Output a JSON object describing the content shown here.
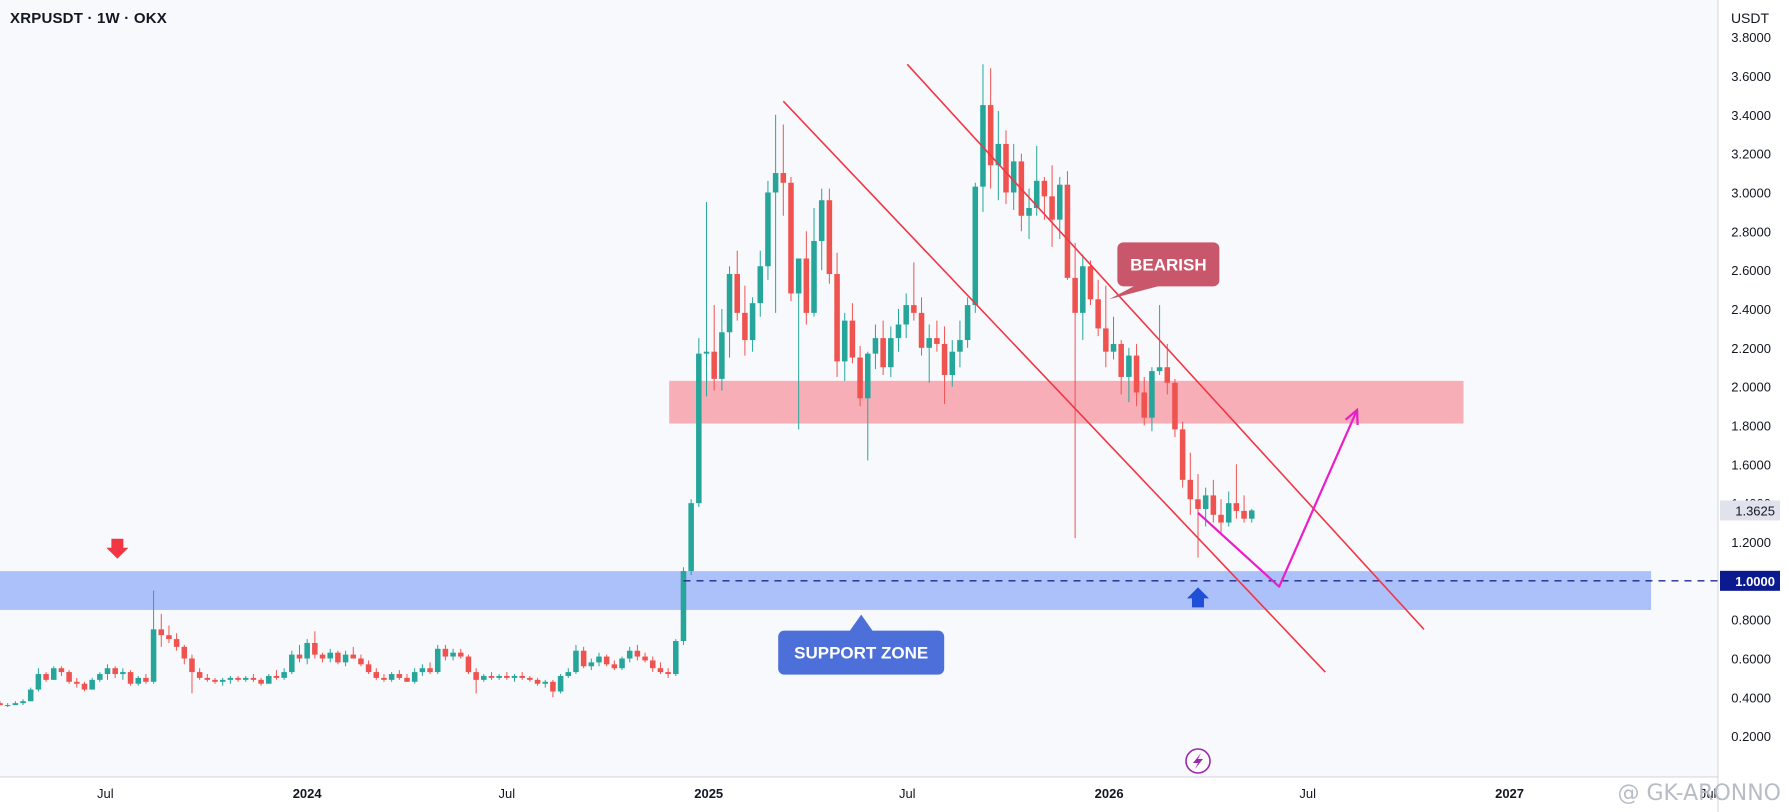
{
  "header": {
    "title": "XRPUSDT · 1W · OKX",
    "unit": "USDT"
  },
  "watermark": "@ GK-ARONNO",
  "colors": {
    "up": "#26a69a",
    "down": "#ef5350",
    "support_zone": "#a8bdfa",
    "resistance_zone": "#f7aab3",
    "channel": "#f23645",
    "projection": "#e91ec8",
    "bearish_callout": "#c9576b",
    "support_callout": "#4d6fd9",
    "level_line": "#1f2a8c"
  },
  "chart_data": {
    "type": "candlestick",
    "title": "XRPUSDT · 1W · OKX",
    "interval": "1W",
    "exchange": "OKX",
    "xlabel": "",
    "ylabel": "USDT",
    "y_ticks": [
      0.2,
      0.4,
      0.6,
      0.8,
      1.0,
      1.2,
      1.4,
      1.6,
      1.8,
      2.0,
      2.2,
      2.4,
      2.6,
      2.8,
      3.0,
      3.2,
      3.4,
      3.6,
      3.8
    ],
    "y_tick_labels": [
      "0.2000",
      "0.4000",
      "0.6000",
      "0.8000",
      "1.0000",
      "1.2000",
      "1.4000",
      "1.6000",
      "1.8000",
      "2.0000",
      "2.2000",
      "2.4000",
      "2.6000",
      "2.8000",
      "3.0000",
      "3.2000",
      "3.4000",
      "3.6000",
      "3.8000"
    ],
    "ylim": [
      0.0,
      3.95
    ],
    "x_ticks": [
      {
        "label": "Jul",
        "date": "2023-07-01"
      },
      {
        "label": "2024",
        "date": "2024-01-01"
      },
      {
        "label": "Jul",
        "date": "2024-07-01"
      },
      {
        "label": "2025",
        "date": "2025-01-01"
      },
      {
        "label": "Jul",
        "date": "2025-07-01"
      },
      {
        "label": "2026",
        "date": "2026-01-01"
      },
      {
        "label": "Jul",
        "date": "2026-07-01"
      },
      {
        "label": "2027",
        "date": "2027-01-01"
      },
      {
        "label": "Jul",
        "date": "2027-07-01"
      }
    ],
    "xlim": [
      "2023-03-27",
      "2027-07-10"
    ],
    "current_price": 1.3625,
    "current_price_label": "1.3625",
    "key_level": 1.0,
    "key_level_label": "1.0000",
    "key_level_start": "2024-12-09",
    "support_zone": {
      "from": 0.85,
      "to": 1.05,
      "start": "2023-03-27",
      "end": "2027-05-10",
      "label": "SUPPORT ZONE",
      "label_date": "2025-05-20",
      "label_price": 0.63
    },
    "resistance_zone": {
      "from": 1.81,
      "to": 2.03,
      "start": "2024-11-26",
      "end": "2026-11-20"
    },
    "bearish_callout": {
      "label": "BEARISH",
      "date": "2026-02-24",
      "price": 2.63,
      "pointer_date": "2026-01-01",
      "pointer_price": 2.45
    },
    "channel_lines": [
      {
        "from": [
          "2025-03-10",
          3.47
        ],
        "to": [
          "2026-07-17",
          0.53
        ]
      },
      {
        "from": [
          "2025-07-01",
          3.66
        ],
        "to": [
          "2026-10-15",
          0.75
        ]
      }
    ],
    "projection_path": [
      [
        "2026-03-23",
        1.35
      ],
      [
        "2026-06-05",
        0.97
      ],
      [
        "2026-08-15",
        1.88
      ]
    ],
    "markers": [
      {
        "kind": "arrow-down",
        "date": "2023-07-12",
        "price": 1.15
      },
      {
        "kind": "arrow-up",
        "date": "2026-03-23",
        "price": 0.93
      }
    ],
    "candles": [
      [
        "2023-03-27",
        0.37,
        0.38,
        0.36,
        0.36
      ],
      [
        "2023-04-03",
        0.36,
        0.37,
        0.35,
        0.36
      ],
      [
        "2023-04-10",
        0.36,
        0.38,
        0.36,
        0.37
      ],
      [
        "2023-04-17",
        0.37,
        0.39,
        0.36,
        0.38
      ],
      [
        "2023-04-24",
        0.38,
        0.45,
        0.38,
        0.44
      ],
      [
        "2023-05-01",
        0.44,
        0.55,
        0.43,
        0.52
      ],
      [
        "2023-05-08",
        0.52,
        0.53,
        0.48,
        0.49
      ],
      [
        "2023-05-15",
        0.49,
        0.56,
        0.49,
        0.55
      ],
      [
        "2023-05-22",
        0.55,
        0.56,
        0.51,
        0.53
      ],
      [
        "2023-05-29",
        0.53,
        0.54,
        0.47,
        0.48
      ],
      [
        "2023-06-05",
        0.48,
        0.5,
        0.45,
        0.47
      ],
      [
        "2023-06-12",
        0.47,
        0.48,
        0.43,
        0.44
      ],
      [
        "2023-06-19",
        0.44,
        0.5,
        0.44,
        0.49
      ],
      [
        "2023-06-26",
        0.49,
        0.53,
        0.48,
        0.52
      ],
      [
        "2023-07-03",
        0.52,
        0.57,
        0.49,
        0.55
      ],
      [
        "2023-07-10",
        0.55,
        0.56,
        0.5,
        0.52
      ],
      [
        "2023-07-17",
        0.52,
        0.55,
        0.49,
        0.53
      ],
      [
        "2023-07-24",
        0.53,
        0.54,
        0.46,
        0.47
      ],
      [
        "2023-07-31",
        0.47,
        0.51,
        0.46,
        0.5
      ],
      [
        "2023-08-07",
        0.5,
        0.52,
        0.47,
        0.48
      ],
      [
        "2023-08-14",
        0.48,
        0.95,
        0.47,
        0.75
      ],
      [
        "2023-08-21",
        0.75,
        0.83,
        0.66,
        0.72
      ],
      [
        "2023-08-28",
        0.72,
        0.77,
        0.68,
        0.7
      ],
      [
        "2023-09-04",
        0.7,
        0.73,
        0.64,
        0.66
      ],
      [
        "2023-09-11",
        0.66,
        0.67,
        0.57,
        0.6
      ],
      [
        "2023-09-18",
        0.6,
        0.62,
        0.42,
        0.53
      ],
      [
        "2023-09-25",
        0.53,
        0.55,
        0.49,
        0.5
      ],
      [
        "2023-10-02",
        0.5,
        0.52,
        0.48,
        0.49
      ],
      [
        "2023-10-09",
        0.49,
        0.5,
        0.47,
        0.48
      ],
      [
        "2023-10-16",
        0.48,
        0.5,
        0.46,
        0.49
      ],
      [
        "2023-10-23",
        0.49,
        0.51,
        0.47,
        0.5
      ],
      [
        "2023-10-30",
        0.5,
        0.51,
        0.48,
        0.49
      ],
      [
        "2023-11-06",
        0.49,
        0.51,
        0.48,
        0.5
      ],
      [
        "2023-11-13",
        0.5,
        0.52,
        0.48,
        0.49
      ],
      [
        "2023-11-20",
        0.49,
        0.5,
        0.46,
        0.47
      ],
      [
        "2023-11-27",
        0.47,
        0.52,
        0.47,
        0.51
      ],
      [
        "2023-12-04",
        0.51,
        0.54,
        0.49,
        0.5
      ],
      [
        "2023-12-11",
        0.5,
        0.55,
        0.49,
        0.53
      ],
      [
        "2023-12-18",
        0.53,
        0.64,
        0.52,
        0.62
      ],
      [
        "2023-12-25",
        0.62,
        0.67,
        0.58,
        0.6
      ],
      [
        "2024-01-01",
        0.6,
        0.7,
        0.57,
        0.68
      ],
      [
        "2024-01-08",
        0.68,
        0.74,
        0.6,
        0.62
      ],
      [
        "2024-01-15",
        0.62,
        0.63,
        0.58,
        0.6
      ],
      [
        "2024-01-22",
        0.6,
        0.65,
        0.58,
        0.63
      ],
      [
        "2024-01-29",
        0.63,
        0.64,
        0.57,
        0.58
      ],
      [
        "2024-02-05",
        0.58,
        0.64,
        0.56,
        0.62
      ],
      [
        "2024-02-12",
        0.62,
        0.66,
        0.6,
        0.6
      ],
      [
        "2024-02-19",
        0.6,
        0.62,
        0.56,
        0.57
      ],
      [
        "2024-02-26",
        0.57,
        0.59,
        0.52,
        0.53
      ],
      [
        "2024-03-04",
        0.53,
        0.55,
        0.49,
        0.5
      ],
      [
        "2024-03-11",
        0.5,
        0.52,
        0.48,
        0.49
      ],
      [
        "2024-03-18",
        0.49,
        0.53,
        0.48,
        0.52
      ],
      [
        "2024-03-25",
        0.52,
        0.54,
        0.49,
        0.5
      ],
      [
        "2024-04-01",
        0.5,
        0.52,
        0.48,
        0.48
      ],
      [
        "2024-04-08",
        0.48,
        0.55,
        0.47,
        0.53
      ],
      [
        "2024-04-15",
        0.53,
        0.57,
        0.51,
        0.55
      ],
      [
        "2024-04-22",
        0.55,
        0.58,
        0.52,
        0.53
      ],
      [
        "2024-04-29",
        0.53,
        0.67,
        0.52,
        0.65
      ],
      [
        "2024-05-06",
        0.65,
        0.67,
        0.59,
        0.61
      ],
      [
        "2024-05-13",
        0.61,
        0.65,
        0.59,
        0.63
      ],
      [
        "2024-05-20",
        0.63,
        0.65,
        0.6,
        0.61
      ],
      [
        "2024-05-27",
        0.61,
        0.62,
        0.52,
        0.53
      ],
      [
        "2024-06-03",
        0.53,
        0.55,
        0.42,
        0.49
      ],
      [
        "2024-06-10",
        0.49,
        0.52,
        0.48,
        0.51
      ],
      [
        "2024-06-17",
        0.51,
        0.53,
        0.49,
        0.5
      ],
      [
        "2024-06-24",
        0.5,
        0.52,
        0.49,
        0.51
      ],
      [
        "2024-07-01",
        0.51,
        0.53,
        0.49,
        0.5
      ],
      [
        "2024-07-08",
        0.5,
        0.52,
        0.48,
        0.51
      ],
      [
        "2024-07-15",
        0.51,
        0.53,
        0.49,
        0.5
      ],
      [
        "2024-07-22",
        0.5,
        0.51,
        0.48,
        0.49
      ],
      [
        "2024-07-29",
        0.49,
        0.5,
        0.46,
        0.47
      ],
      [
        "2024-08-05",
        0.47,
        0.49,
        0.45,
        0.48
      ],
      [
        "2024-08-12",
        0.48,
        0.49,
        0.4,
        0.43
      ],
      [
        "2024-08-19",
        0.43,
        0.52,
        0.42,
        0.51
      ],
      [
        "2024-08-26",
        0.51,
        0.55,
        0.5,
        0.53
      ],
      [
        "2024-09-02",
        0.53,
        0.67,
        0.52,
        0.64
      ],
      [
        "2024-09-09",
        0.64,
        0.66,
        0.55,
        0.56
      ],
      [
        "2024-09-16",
        0.56,
        0.6,
        0.54,
        0.58
      ],
      [
        "2024-09-23",
        0.58,
        0.63,
        0.56,
        0.61
      ],
      [
        "2024-09-30",
        0.61,
        0.62,
        0.56,
        0.57
      ],
      [
        "2024-10-07",
        0.57,
        0.59,
        0.54,
        0.55
      ],
      [
        "2024-10-14",
        0.55,
        0.61,
        0.54,
        0.6
      ],
      [
        "2024-10-21",
        0.6,
        0.66,
        0.58,
        0.64
      ],
      [
        "2024-10-28",
        0.64,
        0.67,
        0.59,
        0.61
      ],
      [
        "2024-11-04",
        0.61,
        0.63,
        0.58,
        0.59
      ],
      [
        "2024-11-11",
        0.59,
        0.61,
        0.53,
        0.55
      ],
      [
        "2024-11-18",
        0.55,
        0.58,
        0.52,
        0.53
      ],
      [
        "2024-11-25",
        0.53,
        0.55,
        0.5,
        0.52
      ],
      [
        "2024-12-02",
        0.52,
        0.7,
        0.51,
        0.69
      ],
      [
        "2024-12-09",
        0.69,
        1.07,
        0.67,
        1.05
      ],
      [
        "2024-12-16",
        1.05,
        1.42,
        1.03,
        1.4
      ],
      [
        "2024-12-23",
        1.4,
        2.25,
        1.38,
        2.17
      ],
      [
        "2024-12-30",
        2.17,
        2.95,
        1.95,
        2.18
      ],
      [
        "2025-01-06",
        2.18,
        2.42,
        1.98,
        2.04
      ],
      [
        "2025-01-13",
        2.04,
        2.4,
        1.98,
        2.28
      ],
      [
        "2025-01-20",
        2.28,
        2.62,
        2.15,
        2.58
      ],
      [
        "2025-01-27",
        2.58,
        2.7,
        2.34,
        2.38
      ],
      [
        "2025-02-03",
        2.38,
        2.52,
        2.16,
        2.24
      ],
      [
        "2025-02-10",
        2.24,
        2.46,
        2.18,
        2.43
      ],
      [
        "2025-02-17",
        2.43,
        2.7,
        2.36,
        2.62
      ],
      [
        "2025-02-24",
        2.62,
        3.06,
        2.55,
        3.0
      ],
      [
        "2025-03-03",
        3.0,
        3.4,
        2.38,
        3.1
      ],
      [
        "2025-03-10",
        3.1,
        3.35,
        2.88,
        3.05
      ],
      [
        "2025-03-17",
        3.05,
        3.08,
        2.44,
        2.48
      ],
      [
        "2025-03-24",
        2.48,
        2.66,
        1.78,
        2.66
      ],
      [
        "2025-03-31",
        2.66,
        2.8,
        2.32,
        2.38
      ],
      [
        "2025-04-07",
        2.38,
        2.92,
        2.36,
        2.75
      ],
      [
        "2025-04-14",
        2.75,
        3.02,
        2.6,
        2.96
      ],
      [
        "2025-04-21",
        2.96,
        3.02,
        2.53,
        2.58
      ],
      [
        "2025-04-28",
        2.58,
        2.69,
        2.05,
        2.13
      ],
      [
        "2025-05-05",
        2.13,
        2.38,
        2.03,
        2.34
      ],
      [
        "2025-05-12",
        2.34,
        2.43,
        2.12,
        2.15
      ],
      [
        "2025-05-19",
        2.15,
        2.21,
        1.9,
        1.94
      ],
      [
        "2025-05-26",
        1.94,
        2.18,
        1.62,
        2.17
      ],
      [
        "2025-06-02",
        2.17,
        2.32,
        2.09,
        2.25
      ],
      [
        "2025-06-09",
        2.25,
        2.34,
        2.06,
        2.1
      ],
      [
        "2025-06-16",
        2.1,
        2.31,
        2.05,
        2.25
      ],
      [
        "2025-06-23",
        2.25,
        2.4,
        2.18,
        2.32
      ],
      [
        "2025-06-30",
        2.32,
        2.48,
        2.25,
        2.42
      ],
      [
        "2025-07-07",
        2.42,
        2.64,
        2.34,
        2.38
      ],
      [
        "2025-07-14",
        2.38,
        2.46,
        2.16,
        2.2
      ],
      [
        "2025-07-21",
        2.2,
        2.32,
        2.02,
        2.25
      ],
      [
        "2025-07-28",
        2.25,
        2.34,
        2.18,
        2.22
      ],
      [
        "2025-08-04",
        2.22,
        2.31,
        1.91,
        2.06
      ],
      [
        "2025-08-11",
        2.06,
        2.24,
        2.0,
        2.18
      ],
      [
        "2025-08-18",
        2.18,
        2.34,
        2.1,
        2.24
      ],
      [
        "2025-08-25",
        2.24,
        2.46,
        2.2,
        2.42
      ],
      [
        "2025-09-01",
        2.42,
        3.05,
        2.38,
        3.03
      ],
      [
        "2025-09-08",
        3.03,
        3.66,
        2.9,
        3.45
      ],
      [
        "2025-09-15",
        3.45,
        3.64,
        3.02,
        3.14
      ],
      [
        "2025-09-22",
        3.14,
        3.42,
        2.96,
        3.25
      ],
      [
        "2025-09-29",
        3.25,
        3.32,
        2.94,
        3.0
      ],
      [
        "2025-10-06",
        3.0,
        3.25,
        2.91,
        3.16
      ],
      [
        "2025-10-13",
        3.16,
        3.2,
        2.8,
        2.88
      ],
      [
        "2025-10-20",
        2.88,
        3.02,
        2.76,
        2.92
      ],
      [
        "2025-10-27",
        2.92,
        3.24,
        2.88,
        3.06
      ],
      [
        "2025-11-03",
        3.06,
        3.08,
        2.86,
        2.98
      ],
      [
        "2025-11-10",
        2.98,
        3.14,
        2.72,
        2.86
      ],
      [
        "2025-11-17",
        2.86,
        3.08,
        2.76,
        3.04
      ],
      [
        "2025-11-24",
        3.04,
        3.11,
        2.55,
        2.56
      ],
      [
        "2025-12-01",
        2.56,
        2.74,
        1.22,
        2.38
      ],
      [
        "2025-12-08",
        2.38,
        2.68,
        2.24,
        2.62
      ],
      [
        "2025-12-15",
        2.62,
        2.65,
        2.42,
        2.45
      ],
      [
        "2025-12-22",
        2.45,
        2.55,
        2.26,
        2.3
      ],
      [
        "2025-12-29",
        2.3,
        2.52,
        2.1,
        2.18
      ],
      [
        "2026-01-05",
        2.18,
        2.36,
        2.14,
        2.22
      ],
      [
        "2026-01-12",
        2.22,
        2.24,
        1.96,
        2.05
      ],
      [
        "2026-01-19",
        2.05,
        2.2,
        1.92,
        2.16
      ],
      [
        "2026-01-26",
        2.16,
        2.22,
        1.9,
        1.97
      ],
      [
        "2026-02-02",
        1.97,
        2.05,
        1.8,
        1.84
      ],
      [
        "2026-02-09",
        1.84,
        2.1,
        1.77,
        2.08
      ],
      [
        "2026-02-16",
        2.08,
        2.42,
        2.06,
        2.1
      ],
      [
        "2026-02-23",
        2.1,
        2.22,
        1.96,
        2.02
      ],
      [
        "2026-03-02",
        2.02,
        2.04,
        1.74,
        1.78
      ],
      [
        "2026-03-09",
        1.78,
        1.82,
        1.48,
        1.52
      ],
      [
        "2026-03-16",
        1.52,
        1.66,
        1.34,
        1.42
      ],
      [
        "2026-03-23",
        1.42,
        1.55,
        1.12,
        1.37
      ],
      [
        "2026-03-30",
        1.37,
        1.48,
        1.28,
        1.44
      ],
      [
        "2026-04-06",
        1.44,
        1.52,
        1.3,
        1.34
      ],
      [
        "2026-04-13",
        1.34,
        1.42,
        1.24,
        1.3
      ],
      [
        "2026-04-20",
        1.3,
        1.46,
        1.28,
        1.4
      ],
      [
        "2026-04-27",
        1.4,
        1.6,
        1.32,
        1.36
      ],
      [
        "2026-05-04",
        1.36,
        1.44,
        1.3,
        1.32
      ],
      [
        "2026-05-11",
        1.32,
        1.37,
        1.3,
        1.3625
      ]
    ]
  }
}
